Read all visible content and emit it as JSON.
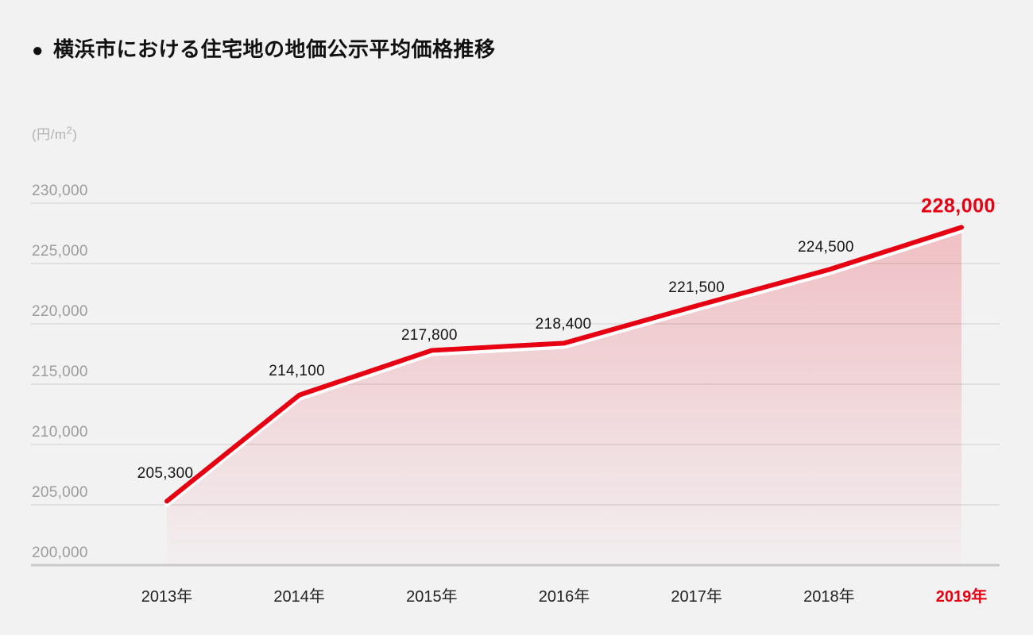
{
  "title": {
    "bullet": "●",
    "text": "横浜市における住宅地の地価公示平均価格推移"
  },
  "unit_label": {
    "text": "(円/m²)",
    "base": "(円/m",
    "sup": "2",
    "close": ")"
  },
  "chart_data": {
    "type": "area",
    "title": "横浜市における住宅地の地価公示平均価格推移",
    "ylabel": "(円/m²)",
    "categories": [
      "2013年",
      "2014年",
      "2015年",
      "2016年",
      "2017年",
      "2018年",
      "2019年"
    ],
    "values": [
      205300,
      214100,
      217800,
      218400,
      221500,
      224500,
      228000
    ],
    "value_labels": [
      "205,300",
      "214,100",
      "217,800",
      "218,400",
      "221,500",
      "224,500",
      "228,000"
    ],
    "ylim": [
      200000,
      230000
    ],
    "ytick_step": 5000,
    "ytick_labels": [
      "200,000",
      "205,000",
      "210,000",
      "215,000",
      "220,000",
      "225,000",
      "230,000"
    ],
    "grid": true,
    "legend": false,
    "highlight_last_index": 6,
    "colors": {
      "background": "#f2f2f3",
      "line": "#e60012",
      "line_shadow": "#ffffff",
      "fill_base": "#e60012",
      "grid": "#e0e0e0",
      "axis_bottom": "#c9c9c9",
      "accent_text": "#e60012",
      "label_text": "#151515",
      "tick_text": "#9c9c9c",
      "xtick_text": "#222222"
    }
  }
}
